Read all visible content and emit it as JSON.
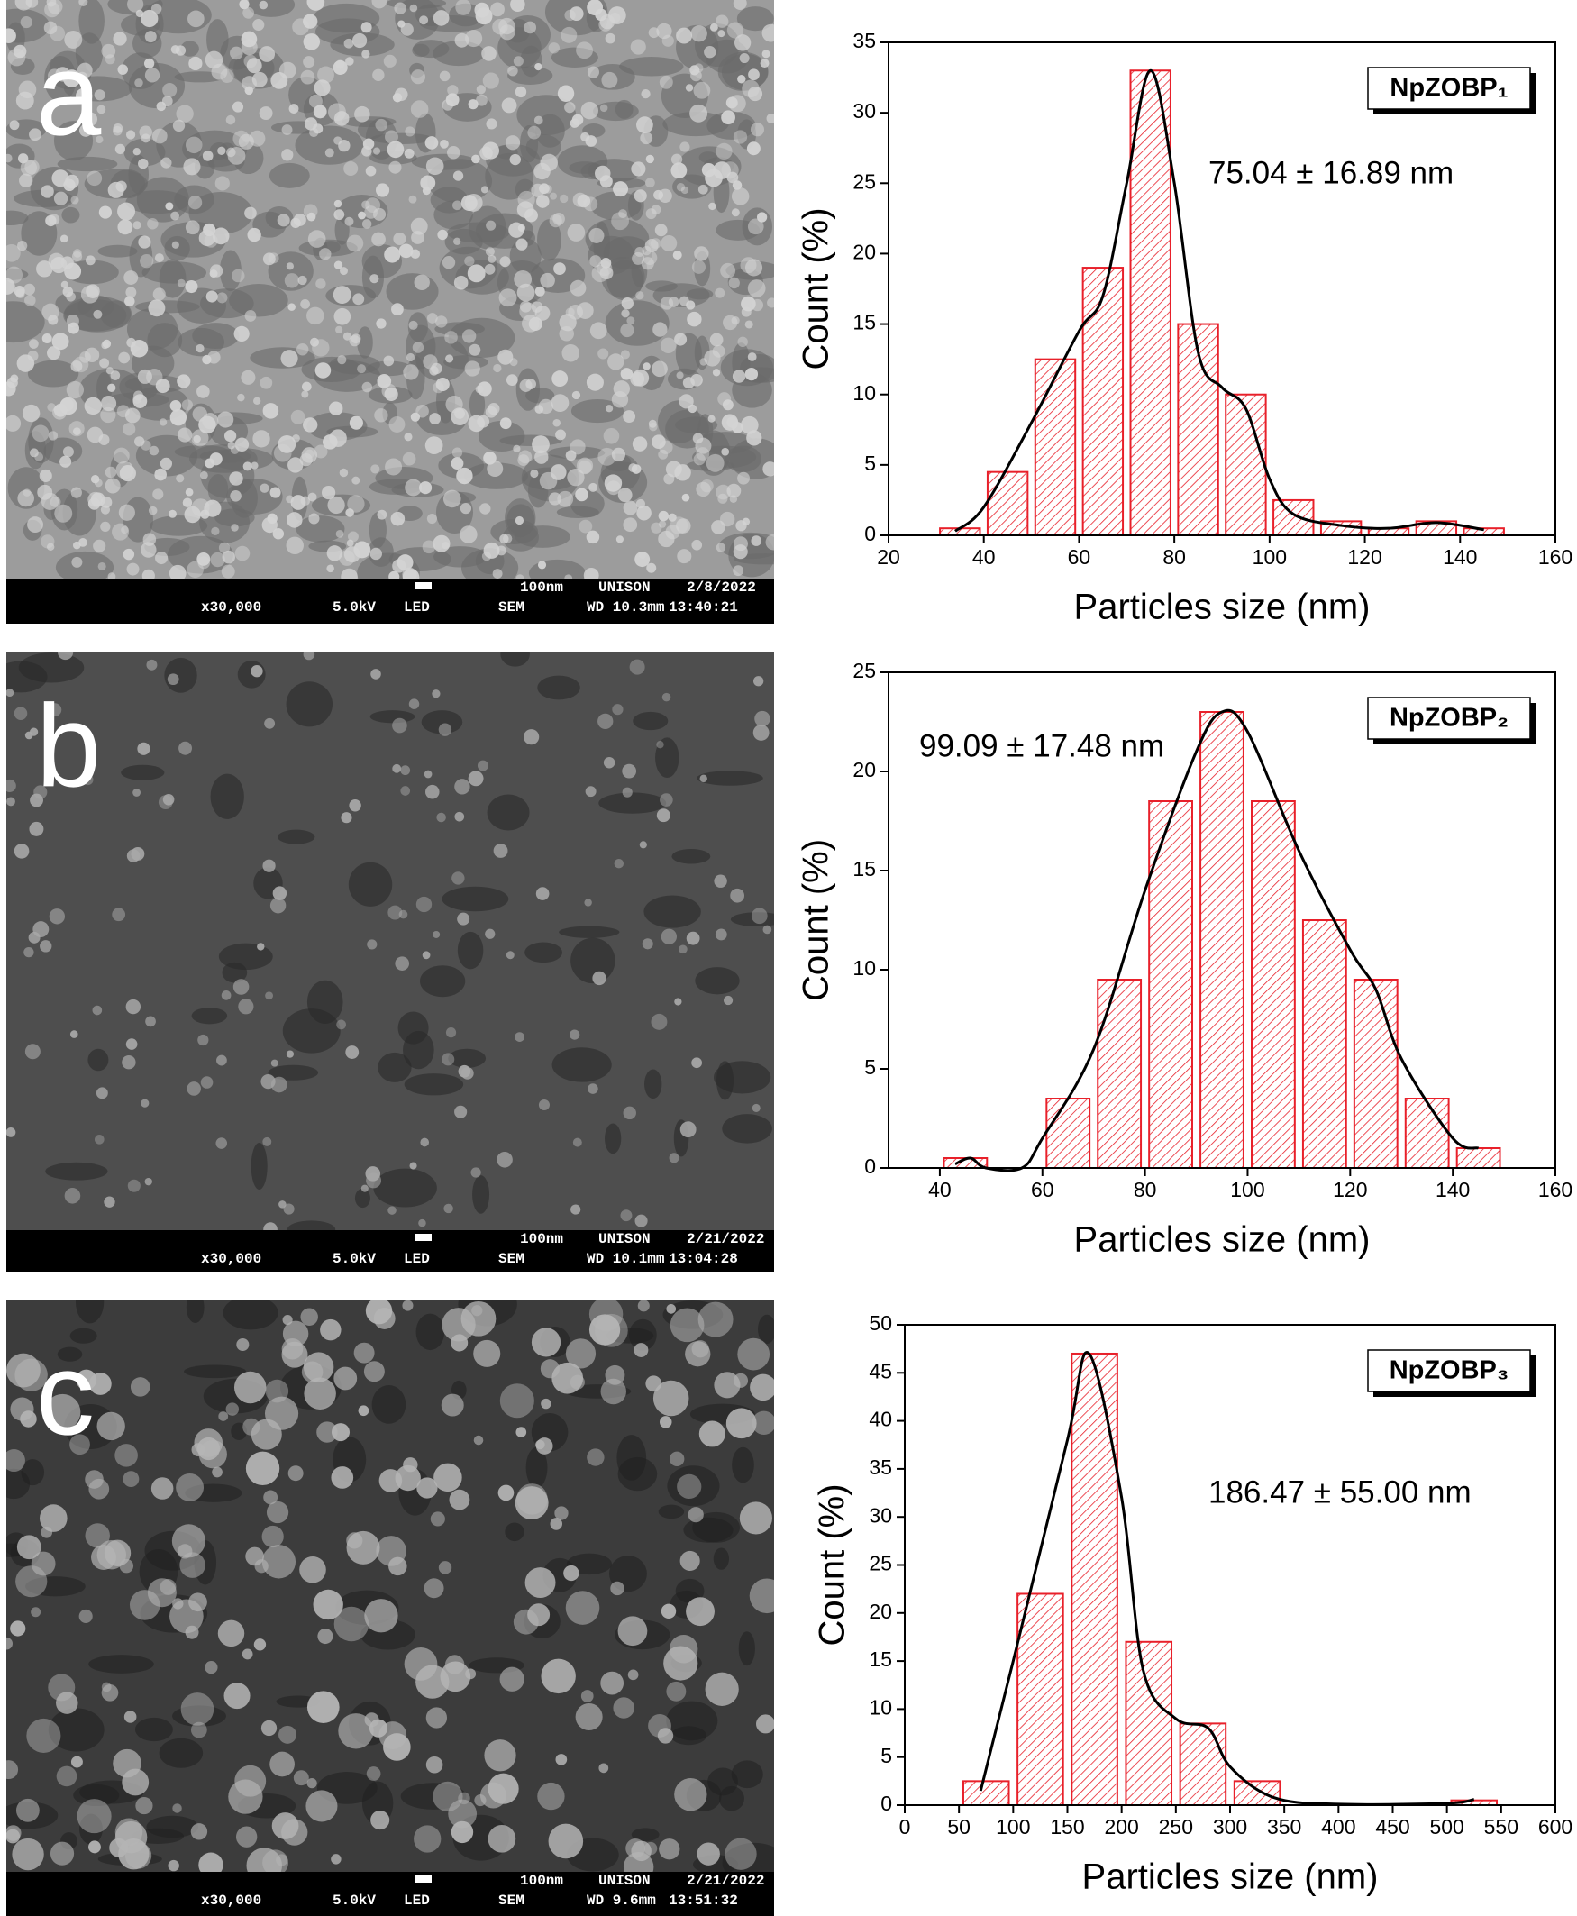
{
  "panels": [
    {
      "letter": "a",
      "info_top": [
        "100nm",
        "UNISON",
        "2/8/2022"
      ],
      "info_bottom": [
        "x30,000",
        "5.0kV",
        "LED",
        "SEM",
        "WD 10.3mm",
        "13:40:21"
      ]
    },
    {
      "letter": "b",
      "info_top": [
        "100nm",
        "UNISON",
        "2/21/2022"
      ],
      "info_bottom": [
        "x30,000",
        "5.0kV",
        "LED",
        "SEM",
        "WD 10.1mm",
        "13:04:28"
      ]
    },
    {
      "letter": "c",
      "info_top": [
        "100nm",
        "UNISON",
        "2/21/2022"
      ],
      "info_bottom": [
        "x30,000",
        "5.0kV",
        "LED",
        "SEM",
        "WD 9.6mm",
        "13:51:32"
      ]
    }
  ],
  "chart_data": [
    {
      "type": "histogram",
      "legend_label": "NpZOBP₁",
      "legend_position": "top-right",
      "annotation": "75.04 ± 16.89 nm",
      "x_label": "Particles size (nm)",
      "y_label": "Count (%)",
      "color": "#e8202a",
      "bins": [
        30,
        40,
        50,
        60,
        70,
        80,
        90,
        100,
        110,
        120,
        130,
        140,
        150
      ],
      "values": [
        0.5,
        4.5,
        12.5,
        19,
        33,
        15,
        10,
        2.5,
        1,
        0.5,
        1,
        0.5
      ],
      "fit": {
        "x": [
          34,
          40,
          50,
          60,
          65,
          70,
          75,
          80,
          85,
          90,
          95,
          100,
          105,
          115,
          125,
          135,
          145
        ],
        "y": [
          0.3,
          2,
          8,
          14.5,
          17,
          25,
          33,
          25,
          13,
          10.5,
          9,
          4,
          1.5,
          0.7,
          0.5,
          0.9,
          0.4
        ]
      },
      "xlim": [
        20,
        160
      ],
      "xticks": [
        20,
        40,
        60,
        80,
        100,
        120,
        140,
        160
      ],
      "ylim": [
        0,
        35
      ],
      "yticks": [
        0,
        5,
        10,
        15,
        20,
        25,
        30,
        35
      ]
    },
    {
      "type": "histogram",
      "legend_label": "NpZOBP₂",
      "legend_position": "top-right",
      "annotation": "99.09 ± 17.48 nm",
      "x_label": "Particles size (nm)",
      "y_label": "Count (%)",
      "color": "#e8202a",
      "bins": [
        40,
        50,
        60,
        70,
        80,
        90,
        100,
        110,
        120,
        130,
        140,
        150
      ],
      "values": [
        0.5,
        0,
        3.5,
        9.5,
        18.5,
        23,
        18.5,
        12.5,
        9.5,
        3.5,
        1
      ],
      "fit": {
        "x": [
          43,
          46,
          49,
          56,
          60,
          70,
          80,
          90,
          95,
          100,
          110,
          120,
          125,
          130,
          140,
          145
        ],
        "y": [
          0.2,
          0.5,
          0,
          0,
          1.5,
          6,
          14,
          21,
          23,
          22,
          16,
          11,
          9,
          5.5,
          1.5,
          1
        ]
      },
      "xlim": [
        30,
        160
      ],
      "xticks": [
        40,
        60,
        80,
        100,
        120,
        140,
        160
      ],
      "ylim": [
        0,
        25
      ],
      "yticks": [
        0,
        5,
        10,
        15,
        20,
        25
      ]
    },
    {
      "type": "histogram",
      "legend_label": "NpZOBP₃",
      "legend_position": "top-right",
      "annotation": "186.47 ± 55.00 nm",
      "x_label": "Particles size (nm)",
      "y_label": "Count (%)",
      "color": "#e8202a",
      "bins": [
        50,
        100,
        150,
        200,
        250,
        300,
        350,
        400,
        450,
        500,
        550
      ],
      "values": [
        2.5,
        22,
        47,
        17,
        8.5,
        2.5,
        0,
        0,
        0,
        0.5
      ],
      "fit": {
        "x": [
          70,
          100,
          150,
          170,
          200,
          220,
          250,
          280,
          300,
          340,
          400,
          500,
          525
        ],
        "y": [
          1.5,
          15,
          38,
          47,
          32,
          14,
          9,
          8,
          4,
          0.8,
          0.1,
          0.2,
          0.6
        ]
      },
      "xlim": [
        0,
        600
      ],
      "xticks": [
        0,
        50,
        100,
        150,
        200,
        250,
        300,
        350,
        400,
        450,
        500,
        550,
        600
      ],
      "ylim": [
        0,
        50
      ],
      "yticks": [
        0,
        5,
        10,
        15,
        20,
        25,
        30,
        35,
        40,
        45,
        50
      ]
    }
  ]
}
